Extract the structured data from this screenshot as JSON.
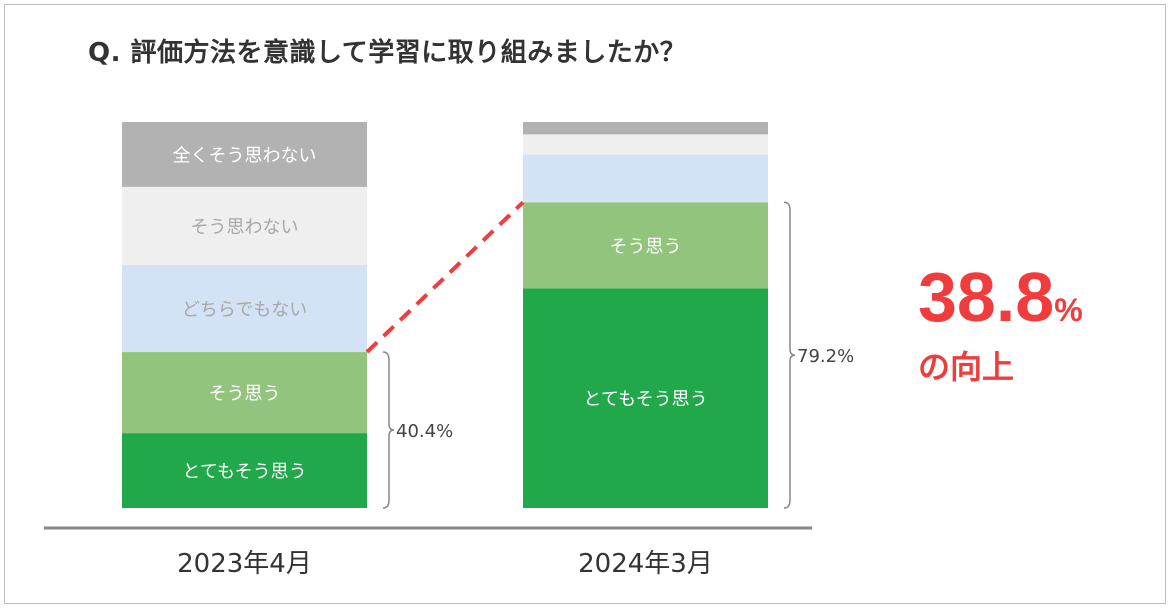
{
  "title": "Q. 評価方法を意識して学習に取り組みましたか？",
  "highlight": {
    "value": "38.8",
    "unit": "%",
    "label": "の向上"
  },
  "colors": {
    "strongly_disagree": "#b2b2b2",
    "disagree": "#efefef",
    "neutral": "#d3e2f4",
    "agree": "#93c47d",
    "strongly_agree": "#21a84a",
    "connector": "#f03c3c",
    "axis": "#888888"
  },
  "chart_data": {
    "type": "bar",
    "stacked": true,
    "categories": [
      "2023年4月",
      "2024年3月"
    ],
    "series": [
      {
        "name": "とてもそう思う",
        "color_key": "strongly_agree",
        "values": [
          19.4,
          56.9
        ],
        "label_color": "#ffffff"
      },
      {
        "name": "そう思う",
        "color_key": "agree",
        "values": [
          21.0,
          22.3
        ],
        "label_color": "#ffffff"
      },
      {
        "name": "どちらでもない",
        "color_key": "neutral",
        "values": [
          22.6,
          12.4
        ],
        "label_color": "#a8a8a8"
      },
      {
        "name": "そう思わない",
        "color_key": "disagree",
        "values": [
          20.2,
          5.2
        ],
        "label_color": "#a8a8a8"
      },
      {
        "name": "全くそう思わない",
        "color_key": "strongly_disagree",
        "values": [
          16.8,
          3.2
        ],
        "label_color": "#ffffff"
      }
    ],
    "segment_labels": [
      [
        "とてもそう思う",
        "そう思う",
        "どちらでもない",
        "そう思わない",
        "全くそう思わない"
      ],
      [
        "とてもそう思う",
        "そう思う",
        "",
        "",
        ""
      ]
    ],
    "bracket_totals": [
      "40.4%",
      "79.2%"
    ],
    "ylim": [
      0,
      100
    ]
  }
}
